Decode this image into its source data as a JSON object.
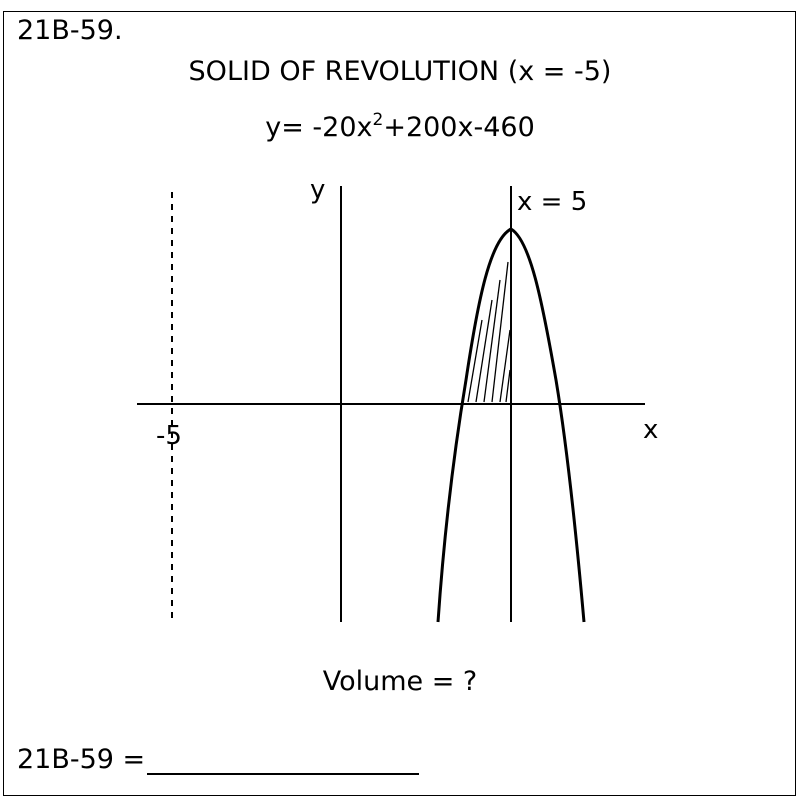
{
  "problem": {
    "id": "21B-59.",
    "title": "SOLID OF REVOLUTION (x = -5)",
    "equation_main": "y= -20x",
    "equation_exp": "2",
    "equation_rest": "+200x-460"
  },
  "diagram": {
    "y_axis_label": "y",
    "x_axis_label": "x",
    "line_label": "x = 5",
    "axis_of_rotation_label": "-5",
    "line_color": "#000000"
  },
  "question": "Volume = ?",
  "answer": {
    "label": "21B-59 ="
  }
}
